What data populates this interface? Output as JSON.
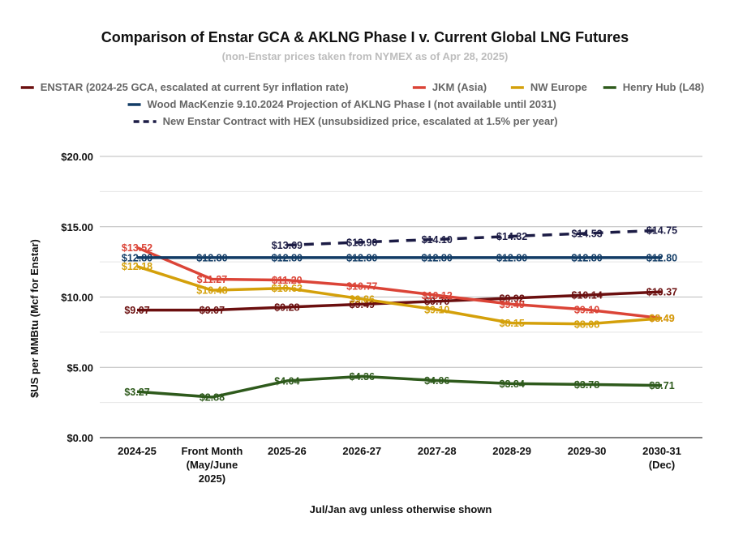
{
  "chart_data": {
    "type": "line",
    "title": "Comparison of Enstar GCA & AKLNG Phase I v. Current Global LNG Futures",
    "subtitle": "(non-Enstar prices taken from NYMEX as of Apr 28, 2025)",
    "xlabel": "Jul/Jan avg unless otherwise shown",
    "ylabel": "$US per MMBtu (Mcf for Enstar)",
    "ylim": [
      0,
      20
    ],
    "yticks": [
      "$0.00",
      "$5.00",
      "$10.00",
      "$15.00",
      "$20.00"
    ],
    "ytick_values": [
      0,
      5,
      10,
      15,
      20
    ],
    "grid": true,
    "legend_position": "top",
    "categories": [
      [
        "2024-25"
      ],
      [
        "Front Month",
        "(May/June",
        "2025)"
      ],
      [
        "2025-26"
      ],
      [
        "2026-27"
      ],
      [
        "2027-28"
      ],
      [
        "2028-29"
      ],
      [
        "2029-30"
      ],
      [
        "2030-31",
        "(Dec)"
      ]
    ],
    "series": [
      {
        "name": "ENSTAR (2024-25 GCA, escalated at current 5yr inflation rate)",
        "color": "#6b0f0f",
        "dash": "solid",
        "values": [
          9.07,
          9.07,
          9.28,
          9.49,
          9.7,
          9.92,
          10.14,
          10.37
        ],
        "labels": [
          "$9.07",
          "$9.07",
          "$9.28",
          "$9.49",
          "$9.70",
          "$9.92",
          "$10.14",
          "$10.37"
        ]
      },
      {
        "name": "JKM (Asia)",
        "color": "#db4437",
        "dash": "solid",
        "values": [
          13.52,
          11.27,
          11.2,
          10.77,
          10.12,
          9.49,
          9.1,
          8.49
        ],
        "labels": [
          "$13.52",
          "$11.27",
          "$11.20",
          "$10.77",
          "$10.12",
          "$9.49",
          "$9.10",
          "$8.49"
        ]
      },
      {
        "name": "NW Europe",
        "color": "#d4a00a",
        "dash": "solid",
        "values": [
          12.18,
          10.48,
          10.63,
          9.86,
          9.1,
          8.15,
          8.08,
          8.49
        ],
        "labels": [
          "$12.18",
          "$10.48",
          "$10.63",
          "$9.86",
          "$9.10",
          "$8.15",
          "$8.08",
          "$8.49"
        ]
      },
      {
        "name": "Henry Hub (L48)",
        "color": "#2e5a1c",
        "dash": "solid",
        "values": [
          3.27,
          2.88,
          4.04,
          4.36,
          4.06,
          3.84,
          3.78,
          3.71
        ],
        "labels": [
          "$3.27",
          "$2.88",
          "$4.04",
          "$4.36",
          "$4.06",
          "$3.84",
          "$3.78",
          "$3.71"
        ]
      },
      {
        "name": "Wood MacKenzie 9.10.2024 Projection of AKLNG Phase I (not available until 2031)",
        "color": "#123c66",
        "dash": "solid",
        "values": [
          12.8,
          12.8,
          12.8,
          12.8,
          12.8,
          12.8,
          12.8,
          12.8
        ],
        "labels": [
          "$12.80",
          "$12.80",
          "$12.80",
          "$12.80",
          "$12.80",
          "$12.80",
          "$12.80",
          "$12.80"
        ]
      },
      {
        "name": "New Enstar Contract with HEX (unsubsidized price, escalated at 1.5% per year)",
        "color": "#1c1c45",
        "dash": "dashed",
        "values": [
          null,
          null,
          13.69,
          13.9,
          14.1,
          14.32,
          14.53,
          14.75
        ],
        "labels": [
          null,
          null,
          "$13.69",
          "$13.90",
          "$14.10",
          "$14.32",
          "$14.53",
          "$14.75"
        ]
      }
    ]
  }
}
